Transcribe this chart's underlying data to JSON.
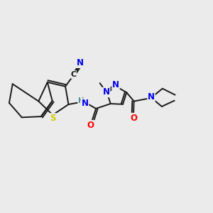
{
  "bg_color": "#ebebeb",
  "bond_color": "#1a1a1a",
  "bond_width": 1.4,
  "atom_colors": {
    "N": "#0000ee",
    "S": "#cccc00",
    "O": "#ff0000",
    "C": "#1a1a1a",
    "H": "#4a9090"
  },
  "font_size": 8.5,
  "fig_size": [
    3.0,
    3.0
  ],
  "dpi": 100
}
